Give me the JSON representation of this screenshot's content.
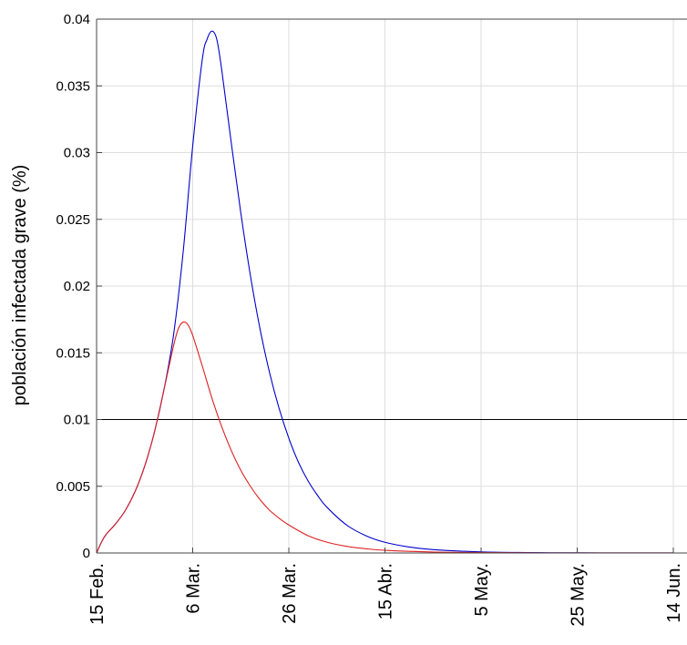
{
  "chart_data": {
    "type": "line",
    "title": "",
    "xlabel": "",
    "ylabel": "población infectada grave (%)",
    "xticks": [
      "15 Feb.",
      "6 Mar.",
      "26 Mar.",
      "15 Abr.",
      "5 May.",
      "25 May.",
      "14 Jun."
    ],
    "xlim_days": [
      0,
      120
    ],
    "ylim": [
      0,
      0.04
    ],
    "yticks": [
      0,
      0.005,
      0.01,
      0.015,
      0.02,
      0.025,
      0.03,
      0.035,
      0.04
    ],
    "ytick_labels": [
      "0",
      "0.005",
      "0.01",
      "0.015",
      "0.02",
      "0.025",
      "0.03",
      "0.035",
      "0.04"
    ],
    "grid": true,
    "reference_line": {
      "y": 0.01,
      "color": "#000000"
    },
    "series": [
      {
        "color": "#0000cc",
        "points": [
          [
            0,
            0
          ],
          [
            1,
            0.0008
          ],
          [
            2,
            0.0014
          ],
          [
            4,
            0.0022
          ],
          [
            6,
            0.0032
          ],
          [
            8,
            0.0046
          ],
          [
            10,
            0.0065
          ],
          [
            12,
            0.009
          ],
          [
            14,
            0.0122
          ],
          [
            16,
            0.0163
          ],
          [
            18,
            0.0225
          ],
          [
            20,
            0.0305
          ],
          [
            22,
            0.037
          ],
          [
            23,
            0.0385
          ],
          [
            24,
            0.0391
          ],
          [
            25,
            0.0385
          ],
          [
            26,
            0.0363
          ],
          [
            28,
            0.0308
          ],
          [
            30,
            0.0255
          ],
          [
            32,
            0.0208
          ],
          [
            34,
            0.0168
          ],
          [
            36,
            0.0135
          ],
          [
            38,
            0.0108
          ],
          [
            40,
            0.0086
          ],
          [
            42,
            0.0068
          ],
          [
            44,
            0.0054
          ],
          [
            46,
            0.0043
          ],
          [
            48,
            0.0034
          ],
          [
            52,
            0.0021
          ],
          [
            56,
            0.0013
          ],
          [
            60,
            0.0008
          ],
          [
            65,
            0.00045
          ],
          [
            70,
            0.00025
          ],
          [
            80,
            8e-05
          ],
          [
            90,
            3e-05
          ],
          [
            100,
            1e-05
          ],
          [
            110,
            4e-06
          ],
          [
            120,
            2e-06
          ]
        ]
      },
      {
        "color": "#dd2222",
        "points": [
          [
            0,
            0
          ],
          [
            1,
            0.0008
          ],
          [
            2,
            0.0014
          ],
          [
            4,
            0.0022
          ],
          [
            6,
            0.0032
          ],
          [
            8,
            0.0046
          ],
          [
            10,
            0.0065
          ],
          [
            12,
            0.009
          ],
          [
            14,
            0.0122
          ],
          [
            16,
            0.0155
          ],
          [
            17,
            0.0168
          ],
          [
            18,
            0.0173
          ],
          [
            19,
            0.0171
          ],
          [
            20,
            0.0163
          ],
          [
            22,
            0.014
          ],
          [
            24,
            0.0116
          ],
          [
            26,
            0.0095
          ],
          [
            28,
            0.0077
          ],
          [
            30,
            0.0062
          ],
          [
            32,
            0.005
          ],
          [
            34,
            0.004
          ],
          [
            36,
            0.0032
          ],
          [
            38,
            0.0026
          ],
          [
            40,
            0.0021
          ],
          [
            44,
            0.0013
          ],
          [
            48,
            0.0008
          ],
          [
            52,
            0.0005
          ],
          [
            56,
            0.00032
          ],
          [
            60,
            0.0002
          ],
          [
            70,
            7e-05
          ],
          [
            80,
            3e-05
          ],
          [
            90,
            1e-05
          ],
          [
            100,
            5e-06
          ],
          [
            120,
            2e-06
          ]
        ]
      }
    ]
  }
}
